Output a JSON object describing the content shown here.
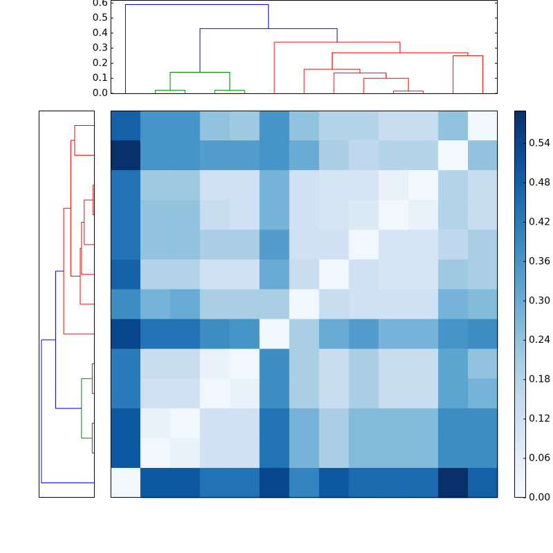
{
  "chart_data": {
    "type": "heatmap",
    "colormap": "Blues",
    "matrix": [
      [
        0.48,
        0.36,
        0.36,
        0.24,
        0.22,
        0.36,
        0.24,
        0.18,
        0.18,
        0.14,
        0.14,
        0.24,
        0.02
      ],
      [
        0.59,
        0.36,
        0.36,
        0.34,
        0.34,
        0.36,
        0.3,
        0.2,
        0.16,
        0.18,
        0.18,
        0.01,
        0.24
      ],
      [
        0.44,
        0.22,
        0.22,
        0.12,
        0.12,
        0.28,
        0.12,
        0.1,
        0.1,
        0.04,
        0.02,
        0.18,
        0.14
      ],
      [
        0.44,
        0.24,
        0.24,
        0.14,
        0.12,
        0.28,
        0.12,
        0.1,
        0.08,
        0.02,
        0.04,
        0.18,
        0.14
      ],
      [
        0.44,
        0.24,
        0.24,
        0.2,
        0.2,
        0.34,
        0.12,
        0.12,
        0.02,
        0.1,
        0.1,
        0.16,
        0.2
      ],
      [
        0.48,
        0.18,
        0.18,
        0.12,
        0.12,
        0.3,
        0.14,
        0.02,
        0.12,
        0.1,
        0.1,
        0.22,
        0.2
      ],
      [
        0.38,
        0.28,
        0.3,
        0.2,
        0.2,
        0.2,
        0.02,
        0.14,
        0.12,
        0.12,
        0.12,
        0.28,
        0.26
      ],
      [
        0.54,
        0.44,
        0.44,
        0.38,
        0.36,
        0.02,
        0.2,
        0.3,
        0.34,
        0.28,
        0.28,
        0.36,
        0.38
      ],
      [
        0.42,
        0.14,
        0.14,
        0.04,
        0.02,
        0.38,
        0.2,
        0.14,
        0.2,
        0.14,
        0.14,
        0.32,
        0.24
      ],
      [
        0.42,
        0.12,
        0.12,
        0.02,
        0.04,
        0.38,
        0.2,
        0.14,
        0.2,
        0.14,
        0.14,
        0.32,
        0.28
      ],
      [
        0.5,
        0.04,
        0.02,
        0.12,
        0.12,
        0.44,
        0.28,
        0.2,
        0.26,
        0.26,
        0.26,
        0.38,
        0.38
      ],
      [
        0.5,
        0.02,
        0.04,
        0.12,
        0.12,
        0.44,
        0.28,
        0.2,
        0.26,
        0.26,
        0.26,
        0.38,
        0.38
      ],
      [
        0.02,
        0.5,
        0.5,
        0.44,
        0.44,
        0.54,
        0.4,
        0.5,
        0.46,
        0.46,
        0.46,
        0.59,
        0.48
      ]
    ],
    "clim": [
      0,
      0.59
    ],
    "cticks": [
      {
        "value": 0,
        "label": "0.00"
      },
      {
        "value": 0.06,
        "label": "0.06"
      },
      {
        "value": 0.12,
        "label": "0.12"
      },
      {
        "value": 0.18,
        "label": "0.18"
      },
      {
        "value": 0.24,
        "label": "0.24"
      },
      {
        "value": 0.3,
        "label": "0.30"
      },
      {
        "value": 0.36,
        "label": "0.36"
      },
      {
        "value": 0.42,
        "label": "0.42"
      },
      {
        "value": 0.48,
        "label": "0.48"
      },
      {
        "value": 0.54,
        "label": "0.54"
      }
    ],
    "top_dendrogram": {
      "ylim": [
        0,
        0.62
      ],
      "yticks": [
        {
          "value": 0,
          "label": "0.0"
        },
        0.1,
        0.2,
        0.3,
        0.4,
        0.5,
        0.6
      ],
      "links": [
        {
          "x": [
            1,
            2
          ],
          "h": [
            0,
            0.02,
            0
          ],
          "color": "#008000"
        },
        {
          "x": [
            3,
            4
          ],
          "h": [
            0,
            0.02,
            0
          ],
          "color": "#008000"
        },
        {
          "x": [
            1.5,
            3.5
          ],
          "h": [
            0.02,
            0.14,
            0.02
          ],
          "color": "#008000"
        },
        {
          "x": [
            11,
            12
          ],
          "h": [
            0,
            0.25,
            0
          ],
          "color": "#ff0000"
        },
        {
          "x": [
            9,
            10
          ],
          "h": [
            0,
            0.015,
            0
          ],
          "color": "#ff0000"
        },
        {
          "x": [
            8,
            9.5
          ],
          "h": [
            0,
            0.1,
            0.015
          ],
          "color": "#ff0000"
        },
        {
          "x": [
            7,
            8.75
          ],
          "h": [
            0,
            0.135,
            0.1
          ],
          "color": "#ff0000"
        },
        {
          "x": [
            6,
            7.875
          ],
          "h": [
            0,
            0.16,
            0.135
          ],
          "color": "#ff0000"
        },
        {
          "x": [
            6.94,
            11.5
          ],
          "h": [
            0.16,
            0.27,
            0.25
          ],
          "color": "#ff0000"
        },
        {
          "x": [
            5,
            9.22
          ],
          "h": [
            0,
            0.34,
            0.27
          ],
          "color": "#ff0000"
        },
        {
          "x": [
            2.5,
            7.11
          ],
          "h": [
            0.14,
            0.43,
            0.34
          ],
          "color": "#0000ff"
        },
        {
          "x": [
            0,
            4.8
          ],
          "h": [
            0,
            0.59,
            0.43
          ],
          "color": "#0000ff"
        }
      ]
    },
    "left_dendrogram": {
      "xlim": [
        0.62,
        0
      ],
      "links": [
        {
          "y": [
            0,
            1
          ],
          "h": [
            0,
            0.217,
            0
          ],
          "color": "#ff0000"
        },
        {
          "y": [
            2,
            3
          ],
          "h": [
            0,
            0.01,
            0
          ],
          "color": "#ff0000"
        },
        {
          "y": [
            2.5,
            4
          ],
          "h": [
            0.01,
            0.11,
            0
          ],
          "color": "#ff0000"
        },
        {
          "y": [
            3.25,
            5
          ],
          "h": [
            0.11,
            0.14,
            0
          ],
          "color": "#ff0000"
        },
        {
          "y": [
            4.125,
            6
          ],
          "h": [
            0.14,
            0.155,
            0
          ],
          "color": "#ff0000"
        },
        {
          "y": [
            0.5,
            5.06
          ],
          "h": [
            0.217,
            0.26,
            0.155
          ],
          "color": "#ff0000"
        },
        {
          "y": [
            2.78,
            7
          ],
          "h": [
            0.26,
            0.34,
            0
          ],
          "color": "#ff0000"
        },
        {
          "y": [
            8,
            9
          ],
          "h": [
            0,
            0.02,
            0
          ],
          "color": "#008000"
        },
        {
          "y": [
            10,
            11
          ],
          "h": [
            0,
            0.02,
            0
          ],
          "color": "#008000"
        },
        {
          "y": [
            8.5,
            10.5
          ],
          "h": [
            0.02,
            0.14,
            0.02
          ],
          "color": "#008000"
        },
        {
          "y": [
            4.89,
            9.5
          ],
          "h": [
            0.34,
            0.43,
            0.14
          ],
          "color": "#0000ff"
        },
        {
          "y": [
            7.2,
            12
          ],
          "h": [
            0.43,
            0.59,
            0
          ],
          "color": "#0000ff"
        }
      ]
    }
  }
}
